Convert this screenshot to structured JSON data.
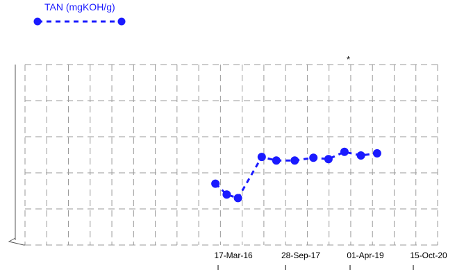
{
  "colors": {
    "series": "#1a1aff",
    "grid": "#9a9a9a",
    "axis": "#555555"
  },
  "note": "*",
  "chart_data": {
    "type": "line",
    "title": "",
    "xlabel": "",
    "ylabel": "",
    "grid": true,
    "legend": "top-left",
    "x_ticks": [
      "17-Mar-16",
      "28-Sep-17",
      "01-Apr-19",
      "15-Oct-20"
    ],
    "series": [
      {
        "name": "TAN (mgKOH/g)",
        "style": "dashed line with circle markers",
        "points": [
          {
            "x": "2015-10-15",
            "y": 0.85
          },
          {
            "x": "2016-01-20",
            "y": 0.7
          },
          {
            "x": "2016-04-25",
            "y": 0.65
          },
          {
            "x": "2016-11-15",
            "y": 1.22
          },
          {
            "x": "2017-03-20",
            "y": 1.17
          },
          {
            "x": "2017-08-25",
            "y": 1.17
          },
          {
            "x": "2018-02-01",
            "y": 1.21
          },
          {
            "x": "2018-06-10",
            "y": 1.19
          },
          {
            "x": "2018-10-25",
            "y": 1.29
          },
          {
            "x": "2019-03-15",
            "y": 1.24
          },
          {
            "x": "2019-08-01",
            "y": 1.27
          }
        ]
      }
    ]
  }
}
